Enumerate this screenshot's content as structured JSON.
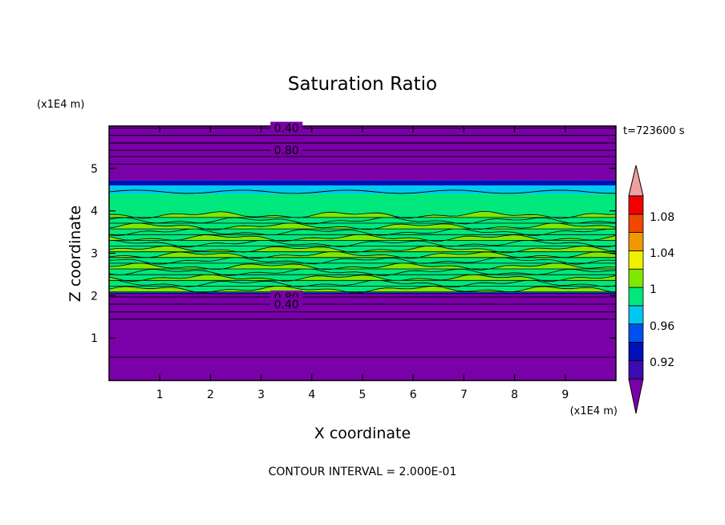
{
  "chart_data": {
    "type": "heatmap",
    "title": "Saturation Ratio",
    "xlabel": "X coordinate",
    "ylabel": "Z coordinate",
    "x_unit": "(x1E4 m)",
    "y_unit": "(x1E4 m)",
    "time_label": "t=723600 s",
    "footer": "CONTOUR INTERVAL = 2.000E-01",
    "xlim": [
      0,
      10
    ],
    "ylim": [
      0,
      6
    ],
    "x_ticks": [
      "1",
      "2",
      "3",
      "4",
      "5",
      "6",
      "7",
      "8",
      "9"
    ],
    "y_ticks": [
      "1",
      "2",
      "3",
      "4",
      "5"
    ],
    "contour_labels": [
      {
        "text": "0.40",
        "x": 3.5,
        "z": 5.95
      },
      {
        "text": "0.80",
        "x": 3.5,
        "z": 5.43
      },
      {
        "text": "0.80",
        "x": 3.5,
        "z": 1.97
      },
      {
        "text": "0.40",
        "x": 3.5,
        "z": 1.8
      }
    ],
    "colorbar": {
      "labels": [
        "1.08",
        "1.04",
        "1",
        "0.96",
        "0.92"
      ],
      "colors": [
        "#7a00a8",
        "#3d0cb0",
        "#0010b8",
        "#0050f0",
        "#00c8f0",
        "#00e87c",
        "#80e800",
        "#f0f000",
        "#f09800",
        "#f04800",
        "#f00000",
        "#f0a0a0"
      ]
    },
    "layers": [
      {
        "z0": 0.0,
        "z1": 2.05,
        "value": 0.9,
        "color": "#7a00a8"
      },
      {
        "z0": 2.05,
        "z1": 2.1,
        "value": 0.96,
        "color": "#0050f0"
      },
      {
        "z0": 2.1,
        "z1": 4.05,
        "value": 1.0,
        "color": "#00e87c"
      },
      {
        "z0": 4.05,
        "z1": 4.4,
        "value": 0.98,
        "color": "#00e87c"
      },
      {
        "z0": 4.4,
        "z1": 4.6,
        "value": 0.96,
        "color": "#00c8f0"
      },
      {
        "z0": 4.6,
        "z1": 4.72,
        "value": 0.92,
        "color": "#0010b8"
      },
      {
        "z0": 4.72,
        "z1": 6.0,
        "value": 0.9,
        "color": "#7a00a8"
      }
    ]
  }
}
